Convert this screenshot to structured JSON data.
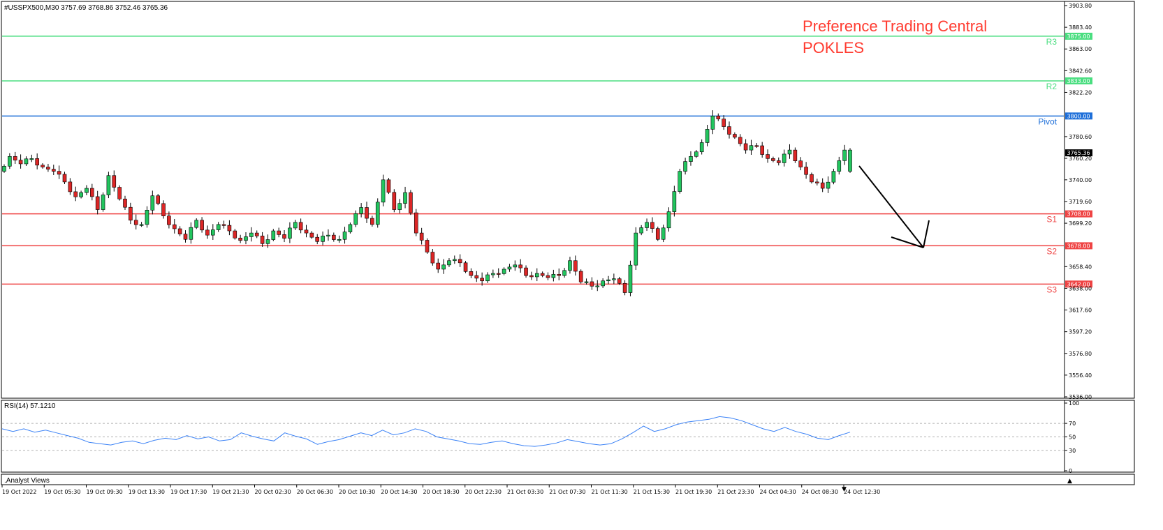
{
  "header": {
    "symbol_info": "#USSPX500,M30  3757.69 3768.86 3752.46 3765.36"
  },
  "watermark": {
    "line1": "Preference Trading Central",
    "line2": "POKLES",
    "color": "#ff3b30"
  },
  "footer": {
    "indicator_label": ".Analyst Views"
  },
  "colors": {
    "bull": "#22c55e",
    "bear": "#dc2626",
    "resistance": "#4ade80",
    "pivot": "#1e6fd9",
    "support": "#ef4444",
    "rsi": "#3b82f6"
  },
  "chart_data": [
    {
      "type": "candlestick",
      "title": "#USSPX500,M30",
      "ohlc_readout": "3757.69 3768.86 3752.46 3765.36",
      "ylim": [
        3536.0,
        3903.8
      ],
      "y_ticks": [
        "3903.80",
        "3883.40",
        "3863.00",
        "3842.60",
        "3822.20",
        "3780.60",
        "3760.20",
        "3740.00",
        "3719.60",
        "3699.20",
        "3658.40",
        "3638.00",
        "3617.60",
        "3597.20",
        "3576.80",
        "3556.40",
        "3536.00"
      ],
      "x_ticks": [
        "19 Oct 2022",
        "19 Oct 05:30",
        "19 Oct 09:30",
        "19 Oct 13:30",
        "19 Oct 17:30",
        "19 Oct 21:30",
        "20 Oct 02:30",
        "20 Oct 06:30",
        "20 Oct 10:30",
        "20 Oct 14:30",
        "20 Oct 18:30",
        "20 Oct 22:30",
        "21 Oct 03:30",
        "21 Oct 07:30",
        "21 Oct 11:30",
        "21 Oct 15:30",
        "21 Oct 19:30",
        "21 Oct 23:30",
        "24 Oct 04:30",
        "24 Oct 08:30",
        "24 Oct 12:30"
      ],
      "current_price_tag": "3765.36",
      "levels": [
        {
          "name": "R3",
          "value": 3875.0,
          "tag": "3875.00",
          "kind": "resistance"
        },
        {
          "name": "R2",
          "value": 3833.0,
          "tag": "3833.00",
          "kind": "resistance"
        },
        {
          "name": "Pivot",
          "value": 3800.0,
          "tag": "3800.00",
          "kind": "pivot"
        },
        {
          "name": "S1",
          "value": 3708.0,
          "tag": "3708.00",
          "kind": "support"
        },
        {
          "name": "S2",
          "value": 3678.0,
          "tag": "3678.00",
          "kind": "support"
        },
        {
          "name": "S3",
          "value": 3642.0,
          "tag": "3642.00",
          "kind": "support"
        }
      ],
      "close_path": [
        3748,
        3762,
        3755,
        3760,
        3752,
        3748,
        3738,
        3724,
        3732,
        3712,
        3744,
        3722,
        3702,
        3698,
        3725,
        3706,
        3694,
        3684,
        3702,
        3688,
        3698,
        3692,
        3683,
        3690,
        3680,
        3692,
        3685,
        3700,
        3690,
        3682,
        3688,
        3684,
        3698,
        3714,
        3698,
        3740,
        3712,
        3728,
        3690,
        3672,
        3656,
        3664,
        3662,
        3650,
        3645,
        3652,
        3656,
        3660,
        3650,
        3652,
        3648,
        3650,
        3664,
        3644,
        3640,
        3645,
        3647,
        3634,
        3690,
        3700,
        3684,
        3710,
        3748,
        3762,
        3775,
        3800,
        3790,
        3780,
        3768,
        3772,
        3760,
        3756,
        3768,
        3752,
        3738,
        3732,
        3748,
        3768
      ]
    },
    {
      "type": "line",
      "title": "RSI(14) 57.1210",
      "ylim": [
        0,
        100
      ],
      "y_ticks": [
        "100",
        "70",
        "50",
        "30",
        "0"
      ],
      "levels": [
        70,
        50,
        30
      ],
      "values": [
        62,
        58,
        62,
        57,
        60,
        56,
        52,
        48,
        42,
        40,
        38,
        42,
        44,
        40,
        45,
        48,
        46,
        52,
        47,
        50,
        44,
        46,
        56,
        51,
        47,
        44,
        56,
        51,
        47,
        39,
        43,
        46,
        51,
        56,
        52,
        60,
        53,
        56,
        62,
        58,
        50,
        47,
        44,
        40,
        39,
        42,
        44,
        40,
        37,
        36,
        38,
        41,
        46,
        43,
        40,
        38,
        40,
        47,
        56,
        66,
        58,
        62,
        68,
        72,
        74,
        76,
        80,
        78,
        74,
        68,
        62,
        58,
        64,
        58,
        54,
        48,
        46,
        52,
        57
      ]
    }
  ]
}
